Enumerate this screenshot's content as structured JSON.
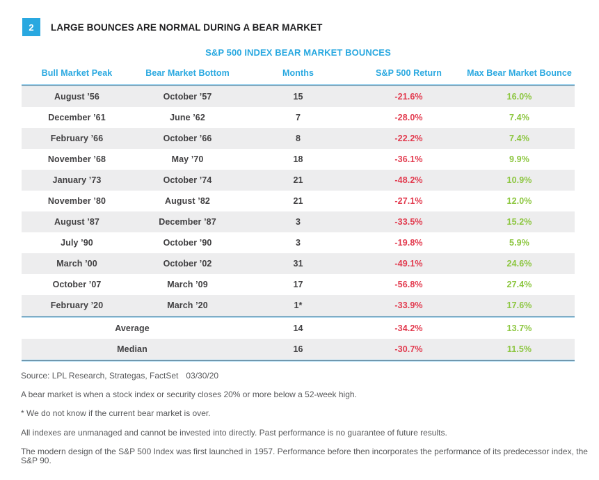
{
  "figure": {
    "badge": "2",
    "title": "LARGE BOUNCES ARE NORMAL DURING A BEAR MARKET"
  },
  "chart_data": {
    "type": "table",
    "title": "S&P 500 INDEX BEAR MARKET BOUNCES",
    "columns": [
      "Bull Market Peak",
      "Bear Market Bottom",
      "Months",
      "S&P 500 Return",
      "Max Bear Market Bounce"
    ],
    "rows": [
      {
        "peak": "August ’56",
        "bottom": "October ’57",
        "months": "15",
        "return": "-21.6%",
        "bounce": "16.0%"
      },
      {
        "peak": "December ’61",
        "bottom": "June ’62",
        "months": "7",
        "return": "-28.0%",
        "bounce": "7.4%"
      },
      {
        "peak": "February ’66",
        "bottom": "October ’66",
        "months": "8",
        "return": "-22.2%",
        "bounce": "7.4%"
      },
      {
        "peak": "November ’68",
        "bottom": "May ’70",
        "months": "18",
        "return": "-36.1%",
        "bounce": "9.9%"
      },
      {
        "peak": "January ’73",
        "bottom": "October ’74",
        "months": "21",
        "return": "-48.2%",
        "bounce": "10.9%"
      },
      {
        "peak": "November ’80",
        "bottom": "August ’82",
        "months": "21",
        "return": "-27.1%",
        "bounce": "12.0%"
      },
      {
        "peak": "August ’87",
        "bottom": "December ’87",
        "months": "3",
        "return": "-33.5%",
        "bounce": "15.2%"
      },
      {
        "peak": "July ’90",
        "bottom": "October ’90",
        "months": "3",
        "return": "-19.8%",
        "bounce": "5.9%"
      },
      {
        "peak": "March ’00",
        "bottom": "October ’02",
        "months": "31",
        "return": "-49.1%",
        "bounce": "24.6%"
      },
      {
        "peak": "October ’07",
        "bottom": "March ’09",
        "months": "17",
        "return": "-56.8%",
        "bounce": "27.4%"
      },
      {
        "peak": "February ’20",
        "bottom": "March ’20",
        "months": "1*",
        "return": "-33.9%",
        "bounce": "17.6%"
      }
    ],
    "summary": [
      {
        "label": "Average",
        "months": "14",
        "return": "-34.2%",
        "bounce": "13.7%"
      },
      {
        "label": "Median",
        "months": "16",
        "return": "-30.7%",
        "bounce": "11.5%"
      }
    ]
  },
  "footnotes": {
    "source": "Source: LPL Research, Strategas, FactSet",
    "date": "03/30/20",
    "lines": [
      "A bear market is when a stock index or security closes 20% or more below a 52-week high.",
      "* We do not know if the current bear market is over.",
      "All indexes are unmanaged and cannot be invested into directly. Past performance is no guarantee of future results.",
      "The modern design of the S&P 500 Index was first launched in 1957. Performance before then incorporates the performance of its predecessor index, the S&P 90."
    ]
  },
  "colors": {
    "accent_blue": "#29a8e0",
    "negative_red": "#e23a4e",
    "positive_green": "#8cc63f",
    "row_stripe": "#ededee",
    "footnote_gray": "#58595b"
  }
}
